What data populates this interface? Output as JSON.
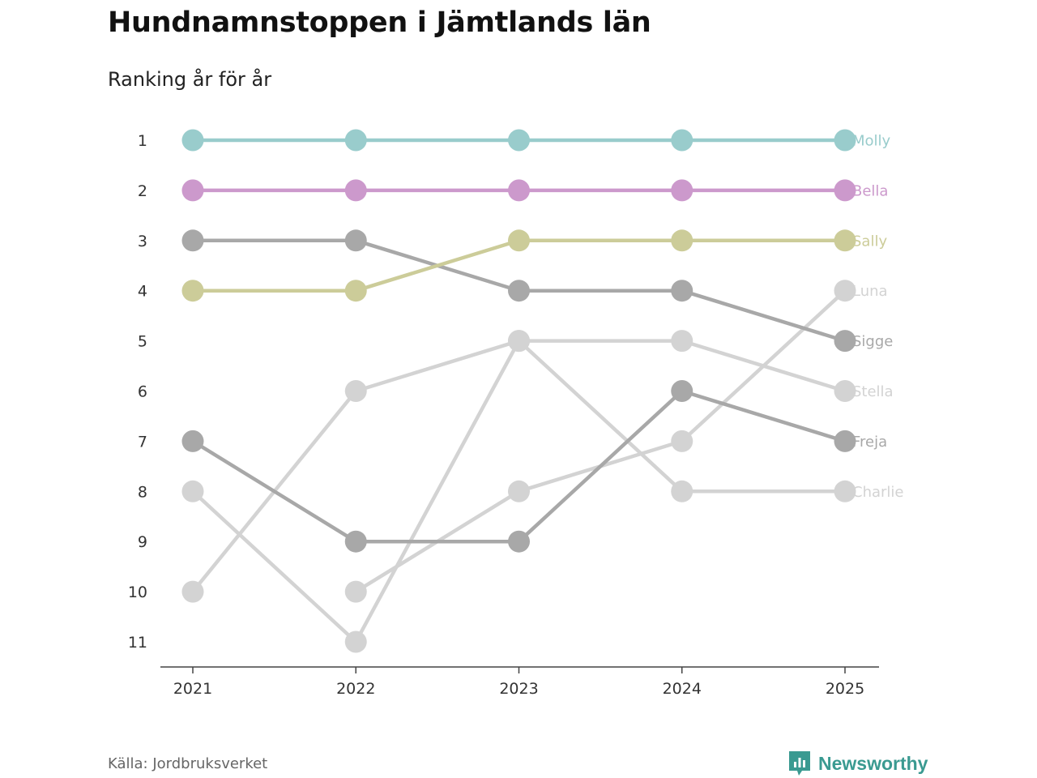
{
  "page": {
    "title": "Hundnamnstoppen i Jämtlands län",
    "subtitle": "Ranking år för år",
    "source": "Källa: Jordbruksverket",
    "brand": "Newsworthy",
    "brand_color": "#3a9a91"
  },
  "chart_data": {
    "type": "line",
    "title": "Hundnamnstoppen i Jämtlands län",
    "subtitle": "Ranking år för år",
    "xlabel": "",
    "ylabel": "",
    "categories": [
      "2021",
      "2022",
      "2023",
      "2024",
      "2025"
    ],
    "y_ticks": [
      1,
      2,
      3,
      4,
      5,
      6,
      7,
      8,
      9,
      10,
      11
    ],
    "ylim": [
      1,
      11
    ],
    "y_reversed": true,
    "grid": false,
    "series": [
      {
        "name": "Charlie",
        "color": "#d3d3d3",
        "values": [
          8,
          11,
          5,
          8,
          8
        ]
      },
      {
        "name": "Stella",
        "color": "#d3d3d3",
        "values": [
          10,
          6,
          5,
          5,
          6
        ]
      },
      {
        "name": "Luna",
        "color": "#d3d3d3",
        "values": [
          null,
          10,
          8,
          7,
          4
        ]
      },
      {
        "name": "Freja",
        "color": "#a8a8a8",
        "values": [
          7,
          9,
          9,
          6,
          7
        ]
      },
      {
        "name": "Sigge",
        "color": "#a8a8a8",
        "values": [
          3,
          3,
          4,
          4,
          5
        ]
      },
      {
        "name": "Sally",
        "color": "#cccc99",
        "values": [
          4,
          4,
          3,
          3,
          3
        ]
      },
      {
        "name": "Bella",
        "color": "#cc99cc",
        "values": [
          2,
          2,
          2,
          2,
          2
        ]
      },
      {
        "name": "Molly",
        "color": "#99cccc",
        "values": [
          1,
          1,
          1,
          1,
          1
        ]
      }
    ]
  }
}
